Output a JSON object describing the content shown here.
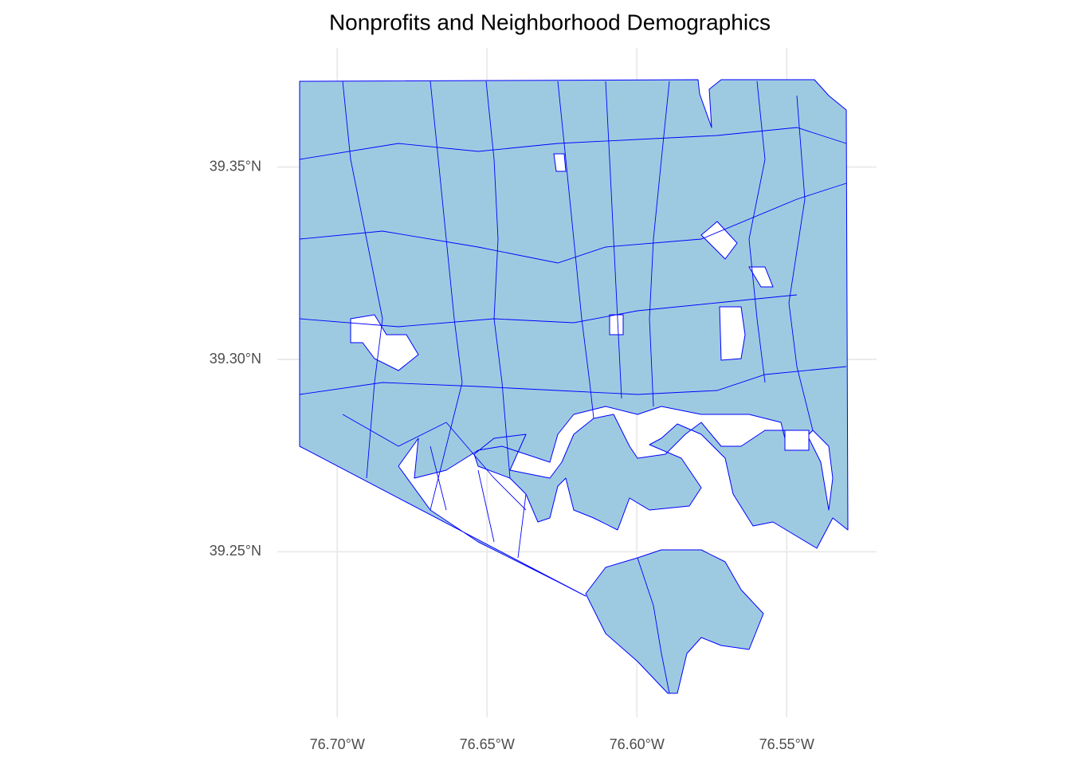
{
  "chart_data": {
    "type": "map",
    "title": "Nonprofits and Neighborhood Demographics",
    "xlim": [
      -76.72,
      -76.52
    ],
    "ylim": [
      39.207,
      39.381
    ],
    "xticks": [
      {
        "value": -76.7,
        "label": "76.70°W"
      },
      {
        "value": -76.65,
        "label": "76.65°W"
      },
      {
        "value": -76.6,
        "label": "76.60°W"
      },
      {
        "value": -76.55,
        "label": "76.55°W"
      }
    ],
    "yticks": [
      {
        "value": 39.25,
        "label": "39.25°N"
      },
      {
        "value": 39.3,
        "label": "39.30°N"
      },
      {
        "value": 39.35,
        "label": "39.35°N"
      }
    ],
    "grid": true
  }
}
